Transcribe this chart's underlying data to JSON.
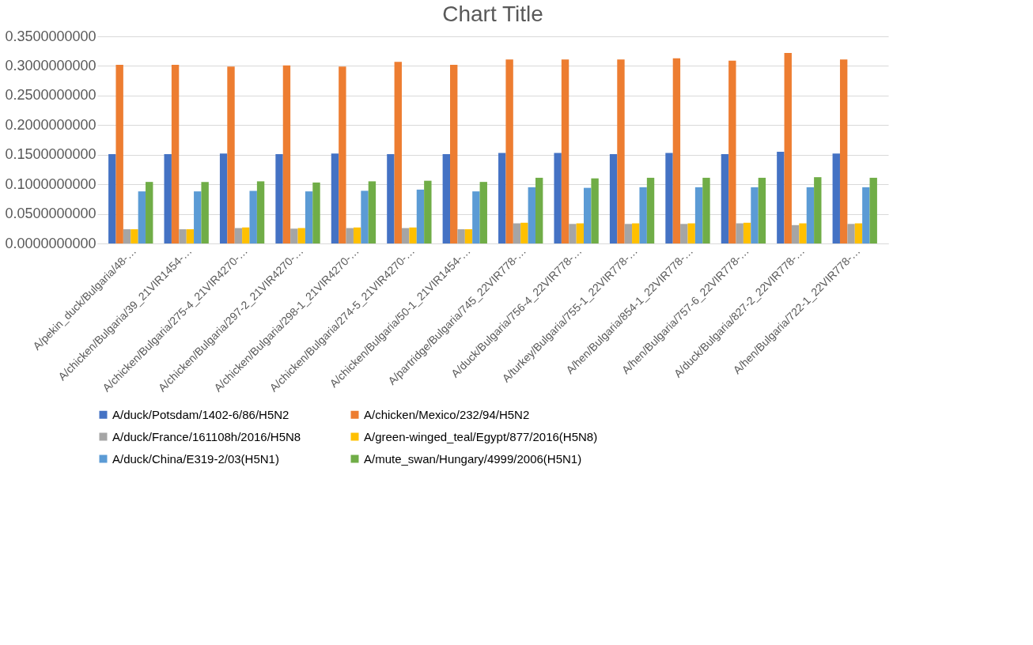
{
  "chart_data": {
    "type": "bar",
    "title": "Chart Title",
    "categories": [
      "A/pekin_duck/Bulgaria/48-…",
      "A/chicken/Bulgaria/39_21VIR1454-…",
      "A/chicken/Bulgaria/275-4_21VIR4270-…",
      "A/chicken/Bulgaria/297-2_21VIR4270-…",
      "A/chicken/Bulgaria/298-1_21VIR4270-…",
      "A/chicken/Bulgaria/274-5_21VIR4270-…",
      "A/chicken/Bulgaria/50-1_21VIR1454-…",
      "A/partridge/Bulgaria/745_22VIR778-…",
      "A/duck/Bulgaria/756-4_22VIR778-…",
      "A/turkey/Bulgaria/755-1_22VIR778-…",
      "A/hen/Bulgaria/854-1_22VIR778-…",
      "A/hen/Bulgaria/757-6_22VIR778-…",
      "A/duck/Bulgaria/827-2_22VIR778-…",
      "A/hen/Bulgaria/722-1_22VIR778-…"
    ],
    "series": [
      {
        "name": "A/duck/Potsdam/1402-6/86/H5N2",
        "color": "#4472c4",
        "values": [
          0.151,
          0.151,
          0.152,
          0.151,
          0.152,
          0.151,
          0.151,
          0.153,
          0.153,
          0.151,
          0.153,
          0.151,
          0.155,
          0.152
        ]
      },
      {
        "name": "A/chicken/Mexico/232/94/H5N2",
        "color": "#ed7d31",
        "values": [
          0.302,
          0.302,
          0.299,
          0.301,
          0.299,
          0.307,
          0.302,
          0.311,
          0.311,
          0.311,
          0.313,
          0.309,
          0.322,
          0.311
        ]
      },
      {
        "name": "A/duck/France/161108h/2016/H5N8",
        "color": "#a5a5a5",
        "values": [
          0.024,
          0.024,
          0.026,
          0.025,
          0.026,
          0.026,
          0.024,
          0.034,
          0.033,
          0.033,
          0.033,
          0.034,
          0.031,
          0.033
        ]
      },
      {
        "name": "A/green-winged_teal/Egypt/877/2016(H5N8)",
        "color": "#ffc000",
        "values": [
          0.024,
          0.024,
          0.027,
          0.026,
          0.027,
          0.027,
          0.024,
          0.035,
          0.034,
          0.034,
          0.034,
          0.035,
          0.034,
          0.034
        ]
      },
      {
        "name": "A/duck/China/E319-2/03(H5N1)",
        "color": "#5b9bd5",
        "values": [
          0.088,
          0.088,
          0.089,
          0.088,
          0.089,
          0.091,
          0.088,
          0.095,
          0.094,
          0.095,
          0.095,
          0.095,
          0.095,
          0.095
        ]
      },
      {
        "name": "A/mute_swan/Hungary/4999/2006(H5N1)",
        "color": "#70ad47",
        "values": [
          0.104,
          0.104,
          0.105,
          0.103,
          0.105,
          0.106,
          0.104,
          0.111,
          0.11,
          0.111,
          0.111,
          0.111,
          0.112,
          0.111
        ]
      }
    ],
    "ylim": [
      0,
      0.35
    ],
    "yticks": [
      {
        "value": 0,
        "label": "0.0000000000"
      },
      {
        "value": 0.05,
        "label": "0.0500000000"
      },
      {
        "value": 0.1,
        "label": "0.1000000000"
      },
      {
        "value": 0.15,
        "label": "0.1500000000"
      },
      {
        "value": 0.2,
        "label": "0.2000000000"
      },
      {
        "value": 0.25,
        "label": "0.2500000000"
      },
      {
        "value": 0.3,
        "label": "0.3000000000"
      },
      {
        "value": 0.35,
        "label": "0.3500000000"
      }
    ],
    "grid": "y",
    "legend": "bottom"
  }
}
